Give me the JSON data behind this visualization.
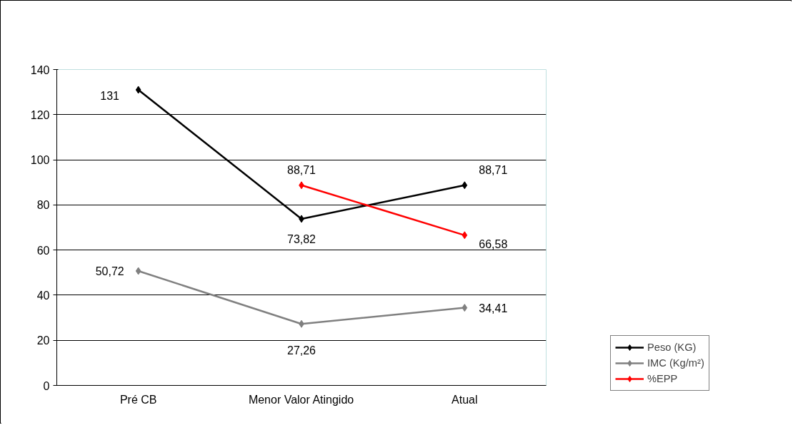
{
  "chart_data": {
    "type": "line",
    "categories": [
      "Pré CB",
      "Menor Valor Atingido",
      "Atual"
    ],
    "series": [
      {
        "name": "Peso (KG)",
        "color": "#000000",
        "values": [
          131,
          73.82,
          88.71
        ],
        "value_labels": [
          "131",
          "73,82",
          "88,71"
        ]
      },
      {
        "name": "IMC (Kg/m²)",
        "color": "#808080",
        "values": [
          50.72,
          27.26,
          34.41
        ],
        "value_labels": [
          "50,72",
          "27,26",
          "34,41"
        ]
      },
      {
        "name": "%EPP",
        "color": "#ff0000",
        "values": [
          null,
          88.71,
          66.58
        ],
        "value_labels": [
          null,
          "88,71",
          "66,58"
        ]
      }
    ],
    "ylim": [
      0,
      140
    ],
    "yticks": [
      0,
      20,
      40,
      60,
      80,
      100,
      120,
      140
    ],
    "grid": "y",
    "legend": "right",
    "marker": "diamond",
    "line_style": "solid"
  }
}
